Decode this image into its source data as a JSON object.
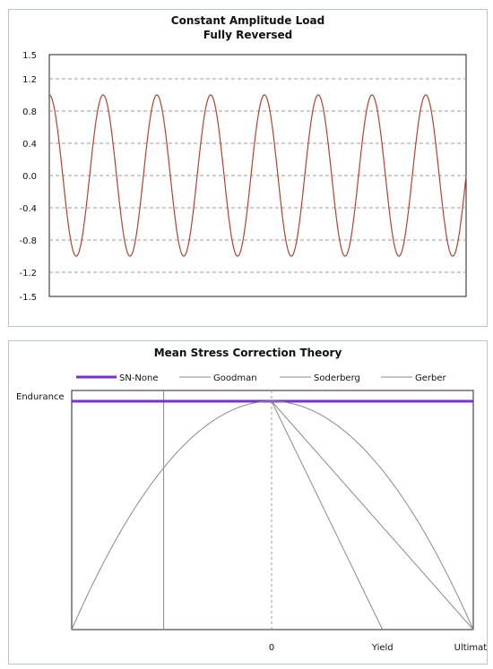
{
  "charts": [
    {
      "title_line1": "Constant Amplitude Load",
      "title_line2": "Fully Reversed"
    },
    {
      "title": "Mean Stress Correction Theory"
    }
  ],
  "chart_data": [
    {
      "type": "line",
      "title": "Constant Amplitude Load",
      "subtitle": "Fully Reversed",
      "xlabel": "",
      "ylabel": "",
      "yticks": [
        "1.5",
        "1.2",
        "0.8",
        "0.4",
        "0.0",
        "-0.4",
        "-0.8",
        "-1.2",
        "-1.5"
      ],
      "ylim": [
        -1.5,
        1.5
      ],
      "grid": true,
      "series": [
        {
          "name": "",
          "function": "cos",
          "amplitude": 1.0,
          "mean": 0.0,
          "cycles": 7.75,
          "color": "#b5422f"
        }
      ]
    },
    {
      "type": "line",
      "title": "Mean Stress Correction Theory",
      "legend": {
        "position": "top",
        "entries": [
          {
            "name": "SN-None",
            "color": "#7a2fd0"
          },
          {
            "name": "Goodman",
            "color": "#8a8a8a"
          },
          {
            "name": "Soderberg",
            "color": "#8a8a8a"
          },
          {
            "name": "Gerber",
            "color": "#8a8a8a"
          }
        ]
      },
      "y_label": "Endurance",
      "x_ticks": [
        "0",
        "Yield",
        "Ultimate"
      ],
      "x_domain": [
        -1,
        1
      ],
      "y_domain": [
        0,
        1
      ],
      "series": [
        {
          "name": "SN-None",
          "points": [
            [
              -1,
              1
            ],
            [
              1,
              1
            ]
          ],
          "color": "#7a2fd0"
        },
        {
          "name": "Goodman",
          "points": [
            [
              0,
              1
            ],
            [
              1,
              0
            ]
          ],
          "color": "#8a8a8a"
        },
        {
          "name": "Soderberg",
          "points": [
            [
              0,
              1
            ],
            [
              0.55,
              0
            ]
          ],
          "color": "#8a8a8a"
        },
        {
          "name": "Gerber",
          "function": "1 - x^2",
          "range": [
            -1,
            1
          ],
          "color": "#8a8a8a"
        }
      ],
      "reference_lines": [
        {
          "x": -0.54,
          "style": "solid",
          "color": "#8a8a8a"
        },
        {
          "x": 0,
          "style": "dashed",
          "color": "#9a9a9a"
        }
      ]
    }
  ]
}
